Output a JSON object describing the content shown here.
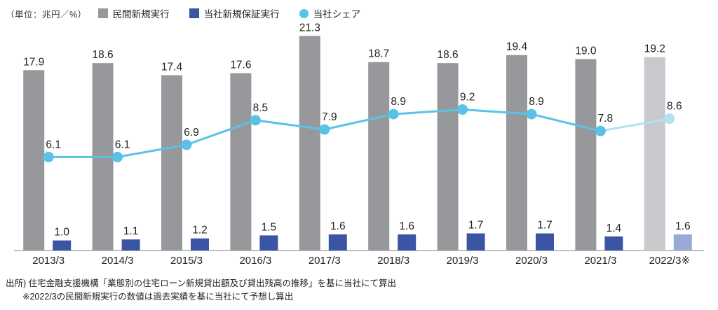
{
  "unit_label": "（単位：兆円／%）",
  "legend": {
    "bar_private": "民間新規実行",
    "bar_company": "当社新規保証実行",
    "line_share": "当社シェア"
  },
  "footnotes": {
    "source": "出所) 住宅金融支援機構「業態別の住宅ローン新規貸出額及び貸出残高の推移」を基に当社にて算出",
    "note": "※2022/3の民間新規実行の数値は過去実績を基に当社にて予想し算出"
  },
  "colors": {
    "private_bar": "#97989B",
    "private_bar_forecast": "#C8C9CD",
    "company_bar": "#3A55A4",
    "company_bar_forecast": "#9AA9D8",
    "share_line": "#5BC2E7",
    "share_line_forecast": "#B2E1F4",
    "text": "#222222",
    "axis": "#9B9B9B"
  },
  "chart_data": {
    "type": "bar+line",
    "categories": [
      "2013/3",
      "2014/3",
      "2015/3",
      "2016/3",
      "2017/3",
      "2018/3",
      "2019/3",
      "2020/3",
      "2021/3",
      "2022/3※"
    ],
    "series": [
      {
        "name": "民間新規実行",
        "type": "bar",
        "unit": "兆円",
        "values": [
          17.9,
          18.6,
          17.4,
          17.6,
          21.3,
          18.7,
          18.6,
          19.4,
          19.0,
          19.2
        ]
      },
      {
        "name": "当社新規保証実行",
        "type": "bar",
        "unit": "兆円",
        "values": [
          1.0,
          1.1,
          1.2,
          1.5,
          1.6,
          1.6,
          1.7,
          1.7,
          1.4,
          1.6
        ]
      },
      {
        "name": "当社シェア",
        "type": "line",
        "unit": "%",
        "values": [
          6.1,
          6.1,
          6.9,
          8.5,
          7.9,
          8.9,
          9.2,
          8.9,
          7.8,
          8.6
        ]
      }
    ],
    "forecast_index": 9,
    "bar_axis_max": 22,
    "grid": false,
    "legend_position": "top"
  }
}
